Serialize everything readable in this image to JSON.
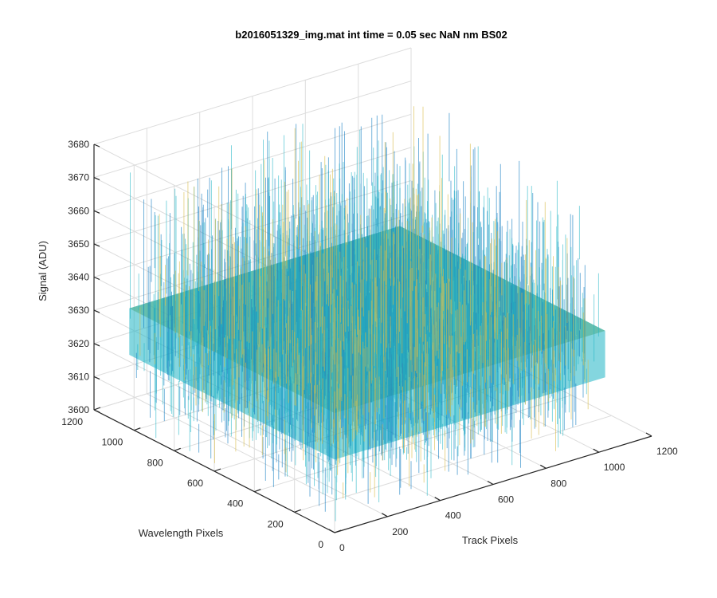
{
  "chart_data": {
    "type": "surface",
    "title": "b2016051329_img.mat int time = 0.05 sec  NaN nm BS02",
    "xlabel": "Track Pixels",
    "ylabel": "Wavelength Pixels",
    "zlabel": "Signal (ADU)",
    "xlim": [
      0,
      1200
    ],
    "ylim": [
      0,
      1200
    ],
    "zlim": [
      3600,
      3680
    ],
    "x_ticks": [
      "0",
      "200",
      "400",
      "600",
      "800",
      "1000",
      "1200"
    ],
    "y_ticks": [
      "0",
      "200",
      "400",
      "600",
      "800",
      "1000",
      "1200"
    ],
    "z_ticks": [
      "3600",
      "3610",
      "3620",
      "3630",
      "3640",
      "3650",
      "3660",
      "3670",
      "3680"
    ],
    "data_extent": {
      "x": [
        0,
        1024
      ],
      "y": [
        0,
        1024
      ]
    },
    "signal_mean": 3630,
    "signal_spread": 12,
    "grid": true,
    "colormap": "parula",
    "colors": {
      "low": "#0072bd",
      "mid": "#1fb4c4",
      "high": "#d9bd4a"
    }
  }
}
